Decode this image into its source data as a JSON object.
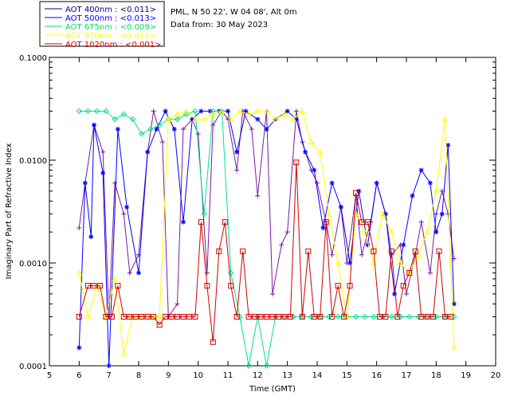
{
  "header": {
    "site": "PML, N 50 22', W 04 08', Alt 0m",
    "date": "Data from: 30 May 2023"
  },
  "legend": [
    {
      "label": "AOT  400nm : <0.011>",
      "color": "#00008b"
    },
    {
      "label": "AOT  500nm : <0.013>",
      "color": "#0000ff"
    },
    {
      "label": "AOT  675nm : <0.009>",
      "color": "#00e060"
    },
    {
      "label": "AOT  870nm : <0.011>",
      "color": "#ffff00"
    },
    {
      "label": "AOT 1020nm : <0.001>",
      "color": "#d00000"
    }
  ],
  "chart_data": {
    "type": "line",
    "xlabel": "Time (GMT)",
    "ylabel": "Imaginary Part of Refractive Index",
    "xlim": [
      5,
      20
    ],
    "ylim": [
      0.0001,
      0.1
    ],
    "y_scale": "log",
    "x_ticks": [
      "5",
      "6",
      "7",
      "8",
      "9",
      "10",
      "11",
      "12",
      "13",
      "14",
      "15",
      "16",
      "17",
      "18",
      "19",
      "20"
    ],
    "y_ticks": [
      {
        "value": 0.0001,
        "label": "0.0001"
      },
      {
        "value": 0.001,
        "label": "0.0010"
      },
      {
        "value": 0.01,
        "label": "0.0100"
      },
      {
        "value": 0.1,
        "label": "0.1000"
      }
    ],
    "series": [
      {
        "name": "AOT 400nm",
        "color": "#7a1aa0",
        "marker": "plus",
        "x": [
          6.0,
          6.2,
          6.5,
          6.8,
          7.0,
          7.2,
          7.5,
          7.7,
          8.0,
          8.3,
          8.5,
          8.8,
          9.0,
          9.3,
          9.5,
          9.8,
          10.0,
          10.3,
          10.5,
          10.8,
          11.0,
          11.3,
          11.5,
          11.8,
          12.0,
          12.3,
          12.5,
          12.8,
          13.0,
          13.3,
          13.5,
          13.8,
          14.0,
          14.3,
          14.5,
          14.8,
          15.0,
          15.3,
          15.5,
          15.8,
          16.0,
          16.3,
          16.5,
          16.8,
          17.0,
          17.3,
          17.5,
          17.8,
          18.0,
          18.2,
          18.4,
          18.6
        ],
        "y": [
          0.0022,
          0.006,
          0.022,
          0.012,
          0.0003,
          0.006,
          0.003,
          0.0008,
          0.0012,
          0.012,
          0.03,
          0.015,
          0.0003,
          0.0004,
          0.02,
          0.025,
          0.018,
          0.0008,
          0.022,
          0.03,
          0.025,
          0.008,
          0.03,
          0.02,
          0.0045,
          0.03,
          0.0005,
          0.0015,
          0.002,
          0.03,
          0.015,
          0.008,
          0.006,
          0.0025,
          0.0012,
          0.0035,
          0.001,
          0.0045,
          0.0012,
          0.0025,
          0.006,
          0.003,
          0.0012,
          0.0015,
          0.0005,
          0.0012,
          0.0025,
          0.0008,
          0.003,
          0.005,
          0.003,
          0.0011
        ]
      },
      {
        "name": "AOT 500nm",
        "color": "#0000ff",
        "marker": "star",
        "x": [
          6.0,
          6.2,
          6.4,
          6.5,
          6.8,
          7.0,
          7.3,
          7.6,
          8.0,
          8.3,
          8.6,
          8.9,
          9.2,
          9.5,
          9.8,
          10.1,
          10.4,
          10.7,
          11.0,
          11.3,
          11.6,
          12.0,
          12.3,
          12.6,
          13.0,
          13.3,
          13.6,
          13.9,
          14.2,
          14.5,
          14.8,
          15.1,
          15.4,
          15.7,
          16.0,
          16.3,
          16.6,
          16.9,
          17.2,
          17.5,
          17.8,
          18.0,
          18.2,
          18.4,
          18.6
        ],
        "y": [
          0.00015,
          0.006,
          0.0018,
          0.022,
          0.0075,
          0.0001,
          0.02,
          0.0035,
          0.0008,
          0.012,
          0.02,
          0.03,
          0.02,
          0.0025,
          0.025,
          0.03,
          0.03,
          0.03,
          0.03,
          0.012,
          0.03,
          0.025,
          0.02,
          0.025,
          0.03,
          0.025,
          0.012,
          0.008,
          0.0022,
          0.006,
          0.0035,
          0.001,
          0.005,
          0.0015,
          0.006,
          0.003,
          0.0005,
          0.0015,
          0.0045,
          0.008,
          0.006,
          0.002,
          0.003,
          0.014,
          0.0004
        ]
      },
      {
        "name": "AOT 675nm",
        "color": "#00e090",
        "marker": "diamond",
        "x": [
          6.0,
          6.3,
          6.6,
          6.9,
          7.2,
          7.5,
          7.8,
          8.1,
          8.4,
          8.7,
          9.0,
          9.3,
          9.6,
          9.9,
          10.2,
          10.5,
          10.8,
          11.1,
          11.4,
          11.7,
          12.0,
          12.3,
          12.6,
          12.9,
          13.2,
          13.5,
          13.8,
          14.1,
          14.4,
          14.7,
          15.0,
          15.3,
          15.6,
          15.9,
          16.2,
          16.5,
          16.8,
          17.1,
          17.4,
          17.7,
          18.0,
          18.3,
          18.6
        ],
        "y": [
          0.03,
          0.03,
          0.03,
          0.03,
          0.025,
          0.028,
          0.025,
          0.018,
          0.02,
          0.022,
          0.025,
          0.025,
          0.028,
          0.03,
          0.003,
          0.03,
          0.03,
          0.0008,
          0.0003,
          0.0001,
          0.0003,
          0.0001,
          0.0003,
          0.0003,
          0.0003,
          0.0003,
          0.0003,
          0.0003,
          0.0003,
          0.0003,
          0.0003,
          0.0003,
          0.0003,
          0.0003,
          0.0003,
          0.0003,
          0.0003,
          0.0003,
          0.0003,
          0.0003,
          0.0003,
          0.0003,
          0.0003
        ]
      },
      {
        "name": "AOT 870nm",
        "color": "#ffff00",
        "marker": "triangle",
        "x": [
          6.0,
          6.3,
          6.6,
          6.9,
          7.2,
          7.5,
          7.8,
          8.1,
          8.4,
          8.7,
          9.0,
          9.3,
          9.6,
          9.9,
          10.2,
          10.5,
          10.8,
          11.1,
          11.4,
          11.7,
          12.0,
          12.3,
          12.6,
          12.9,
          13.2,
          13.5,
          13.8,
          14.1,
          14.4,
          14.7,
          15.0,
          15.3,
          15.6,
          15.9,
          16.2,
          16.5,
          16.8,
          17.1,
          17.4,
          17.7,
          18.0,
          18.3,
          18.6
        ],
        "y": [
          0.0008,
          0.0003,
          0.0006,
          0.0003,
          0.0007,
          0.00013,
          0.0003,
          0.0003,
          0.0003,
          0.0003,
          0.025,
          0.028,
          0.03,
          0.025,
          0.025,
          0.028,
          0.03,
          0.025,
          0.03,
          0.028,
          0.03,
          0.03,
          0.025,
          0.028,
          0.025,
          0.03,
          0.015,
          0.012,
          0.003,
          0.001,
          0.0003,
          0.003,
          0.002,
          0.001,
          0.003,
          0.002,
          0.001,
          0.0008,
          0.0012,
          0.002,
          0.005,
          0.025,
          0.00015
        ]
      },
      {
        "name": "AOT 1020nm",
        "color": "#d00000",
        "marker": "square",
        "x": [
          6.0,
          6.3,
          6.5,
          6.7,
          6.9,
          7.1,
          7.3,
          7.5,
          7.7,
          7.9,
          8.1,
          8.3,
          8.5,
          8.7,
          8.9,
          9.1,
          9.3,
          9.5,
          9.7,
          9.9,
          10.1,
          10.3,
          10.5,
          10.7,
          10.9,
          11.1,
          11.3,
          11.5,
          11.7,
          11.9,
          12.1,
          12.3,
          12.5,
          12.7,
          12.9,
          13.1,
          13.3,
          13.5,
          13.7,
          13.9,
          14.1,
          14.3,
          14.5,
          14.7,
          14.9,
          15.1,
          15.3,
          15.5,
          15.7,
          15.9,
          16.1,
          16.3,
          16.5,
          16.7,
          16.9,
          17.1,
          17.3,
          17.5,
          17.7,
          17.9,
          18.1,
          18.3,
          18.5
        ],
        "y": [
          0.0003,
          0.0006,
          0.0006,
          0.0006,
          0.0003,
          0.0003,
          0.0006,
          0.0003,
          0.0003,
          0.0003,
          0.0003,
          0.0003,
          0.0003,
          0.00025,
          0.0003,
          0.0003,
          0.0003,
          0.0003,
          0.0003,
          0.0003,
          0.0025,
          0.0006,
          0.00017,
          0.0013,
          0.0025,
          0.0006,
          0.0003,
          0.0013,
          0.0003,
          0.0003,
          0.0003,
          0.0003,
          0.0003,
          0.0003,
          0.0003,
          0.0003,
          0.0095,
          0.0003,
          0.0013,
          0.0003,
          0.0003,
          0.0025,
          0.0003,
          0.0006,
          0.0003,
          0.0006,
          0.0048,
          0.0025,
          0.0025,
          0.0013,
          0.0003,
          0.0003,
          0.0013,
          0.0003,
          0.0006,
          0.0008,
          0.0013,
          0.0003,
          0.0003,
          0.0003,
          0.0013,
          0.0003,
          0.0003
        ]
      }
    ]
  }
}
